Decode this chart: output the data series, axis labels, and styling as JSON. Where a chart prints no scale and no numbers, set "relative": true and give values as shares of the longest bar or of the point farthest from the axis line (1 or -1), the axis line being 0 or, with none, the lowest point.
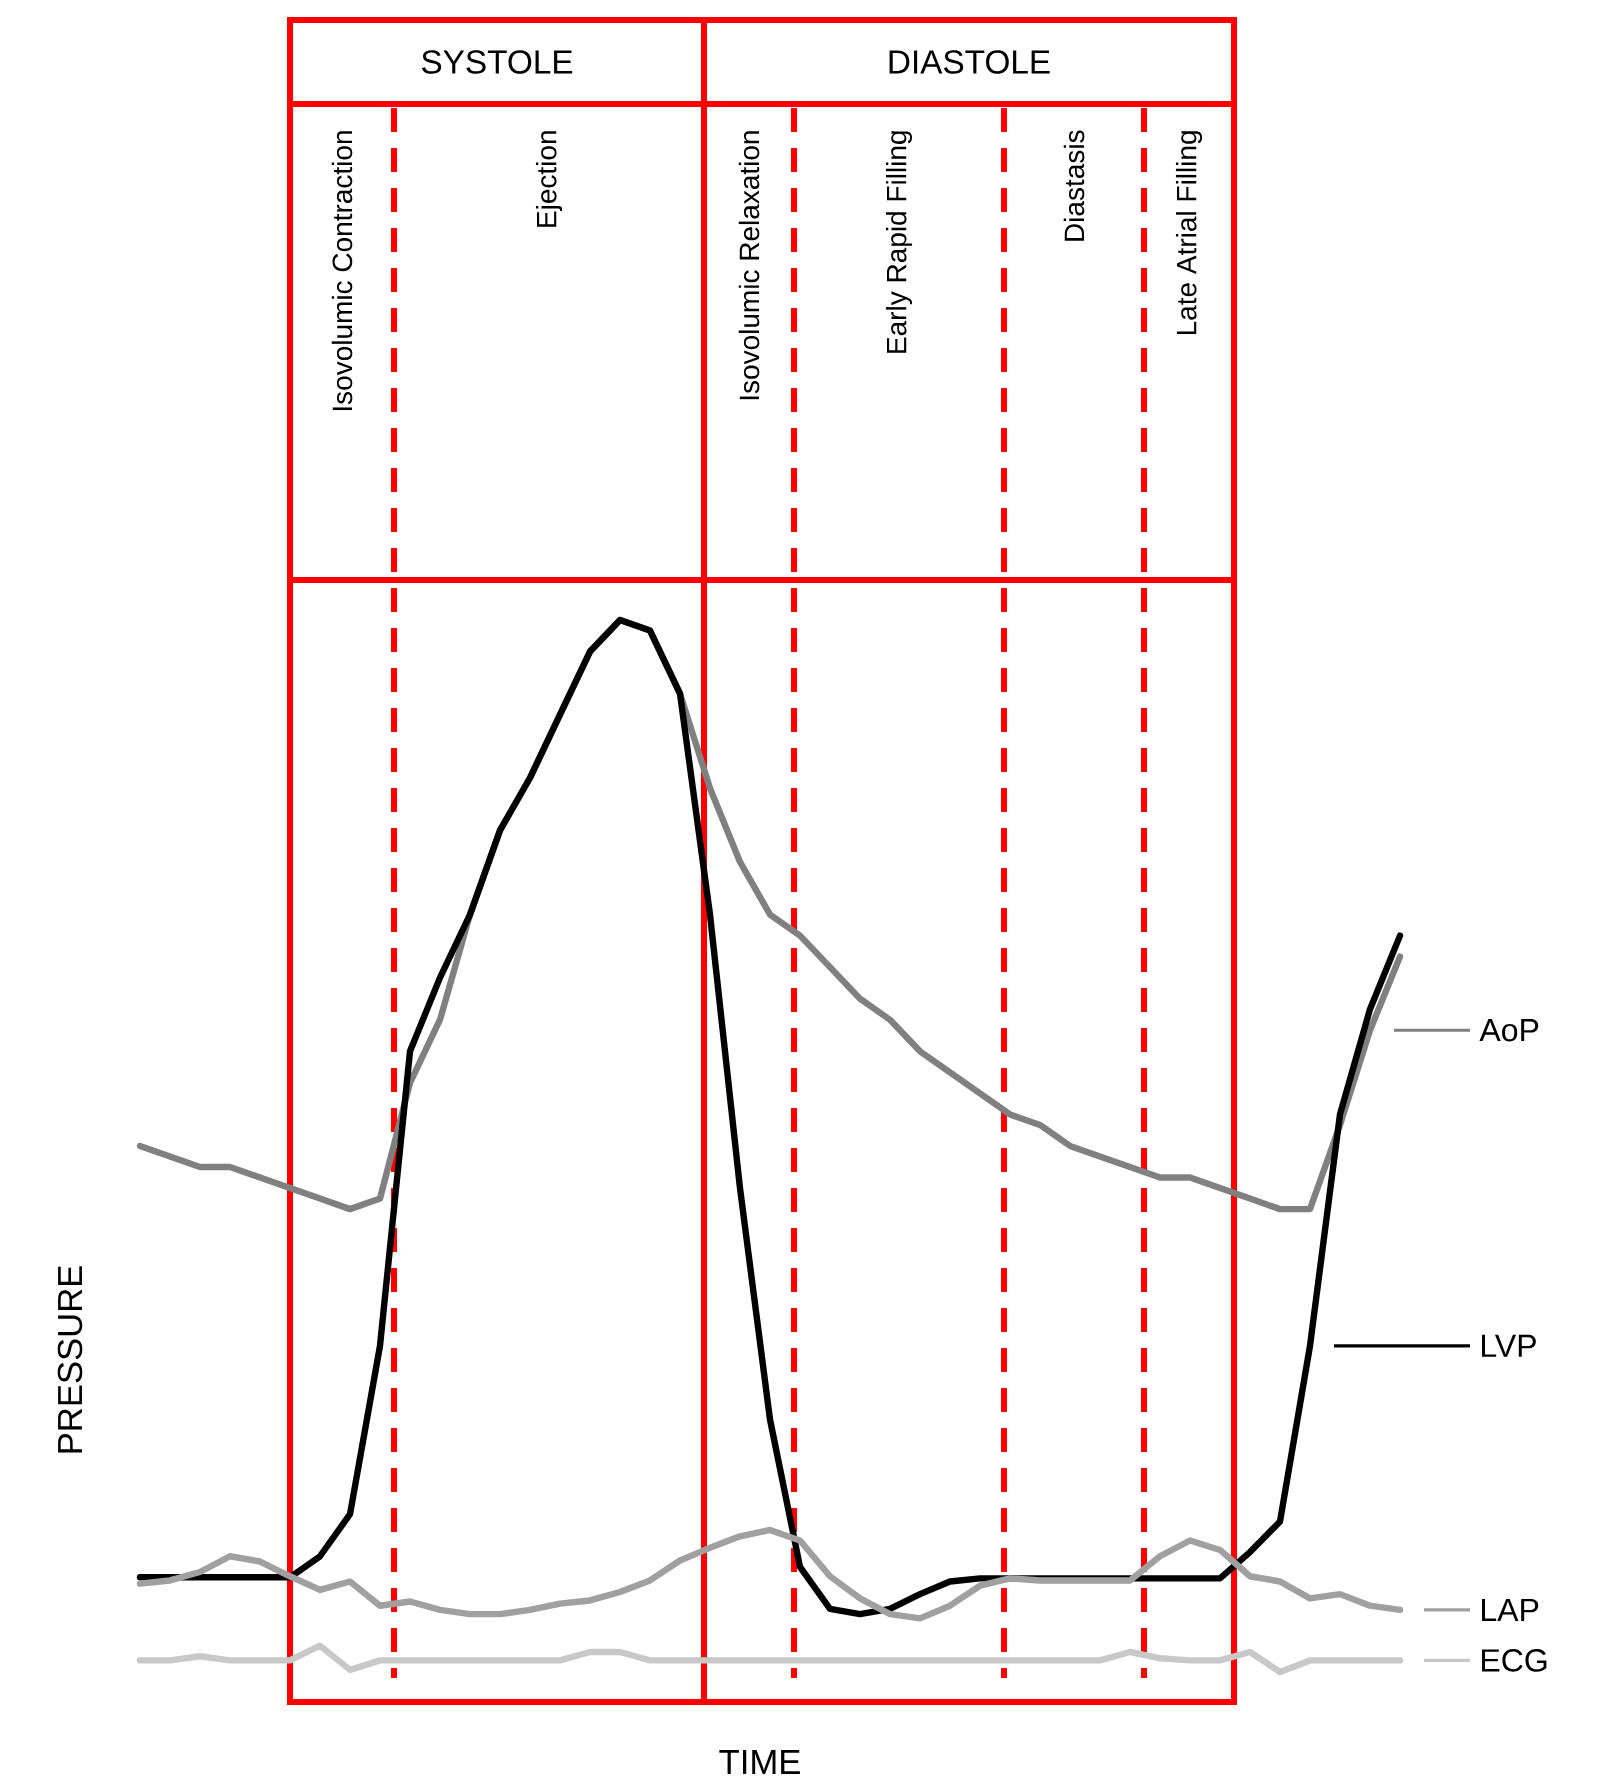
{
  "chart_data": {
    "type": "line",
    "relative": true,
    "xlabel": "TIME",
    "ylabel": "PRESSURE",
    "legend": "right",
    "categories": [
      null,
      null,
      null,
      null,
      null,
      null,
      null,
      null,
      null,
      null,
      null,
      null,
      null,
      null,
      null,
      null,
      null,
      null,
      null,
      null,
      null,
      null,
      null,
      null,
      null,
      null,
      null,
      null,
      null,
      null,
      null,
      null,
      null,
      null,
      null,
      null,
      null,
      null,
      null,
      null,
      null,
      null,
      null
    ],
    "series": [
      {
        "name": "AoP",
        "color": "#808080",
        "values": [
          0.5,
          0.49,
          0.48,
          0.48,
          0.47,
          0.46,
          0.45,
          0.44,
          0.45,
          0.56,
          0.62,
          0.72,
          0.8,
          0.85,
          0.91,
          0.97,
          1.0,
          0.99,
          0.93,
          0.84,
          0.77,
          0.72,
          0.7,
          0.67,
          0.64,
          0.62,
          0.59,
          0.57,
          0.55,
          0.53,
          0.52,
          0.5,
          0.49,
          0.48,
          0.47,
          0.47,
          0.46,
          0.45,
          0.44,
          0.44,
          0.52,
          0.61,
          0.68
        ]
      },
      {
        "name": "LVP",
        "color": "#000000",
        "values": [
          0.09,
          0.09,
          0.09,
          0.09,
          0.09,
          0.09,
          0.11,
          0.15,
          0.31,
          0.59,
          0.66,
          0.72,
          0.8,
          0.85,
          0.91,
          0.97,
          1.0,
          0.99,
          0.93,
          0.72,
          0.46,
          0.24,
          0.1,
          0.06,
          0.055,
          0.06,
          0.074,
          0.086,
          0.089,
          0.089,
          0.089,
          0.089,
          0.089,
          0.089,
          0.089,
          0.089,
          0.089,
          0.114,
          0.143,
          0.31,
          0.53,
          0.63,
          0.7
        ]
      },
      {
        "name": "LAP",
        "color": "#a0a0a0",
        "values": [
          0.084,
          0.087,
          0.095,
          0.11,
          0.105,
          0.091,
          0.078,
          0.086,
          0.063,
          0.067,
          0.059,
          0.055,
          0.055,
          0.059,
          0.065,
          0.068,
          0.076,
          0.087,
          0.106,
          0.118,
          0.129,
          0.135,
          0.125,
          0.091,
          0.07,
          0.055,
          0.051,
          0.063,
          0.082,
          0.089,
          0.087,
          0.087,
          0.087,
          0.087,
          0.11,
          0.125,
          0.116,
          0.091,
          0.086,
          0.07,
          0.074,
          0.063,
          0.059
        ]
      },
      {
        "name": "ECG",
        "color": "#c8c8c8",
        "values": [
          0.011,
          0.011,
          0.015,
          0.011,
          0.011,
          0.011,
          0.025,
          0.002,
          0.011,
          0.011,
          0.011,
          0.011,
          0.011,
          0.011,
          0.011,
          0.019,
          0.019,
          0.011,
          0.011,
          0.011,
          0.011,
          0.011,
          0.011,
          0.011,
          0.011,
          0.011,
          0.011,
          0.011,
          0.011,
          0.011,
          0.011,
          0.011,
          0.011,
          0.019,
          0.013,
          0.011,
          0.011,
          0.019,
          0,
          0.011,
          0.011,
          0.011,
          0.011
        ]
      }
    ],
    "annotations": [
      "SYSTOLE",
      "DIASTOLE",
      "Isovolumic Contraction",
      "Ejection",
      "Isovolumic Relaxation",
      "Early Rapid Filling",
      "Diastasis",
      "Late Atrial Filling"
    ]
  }
}
